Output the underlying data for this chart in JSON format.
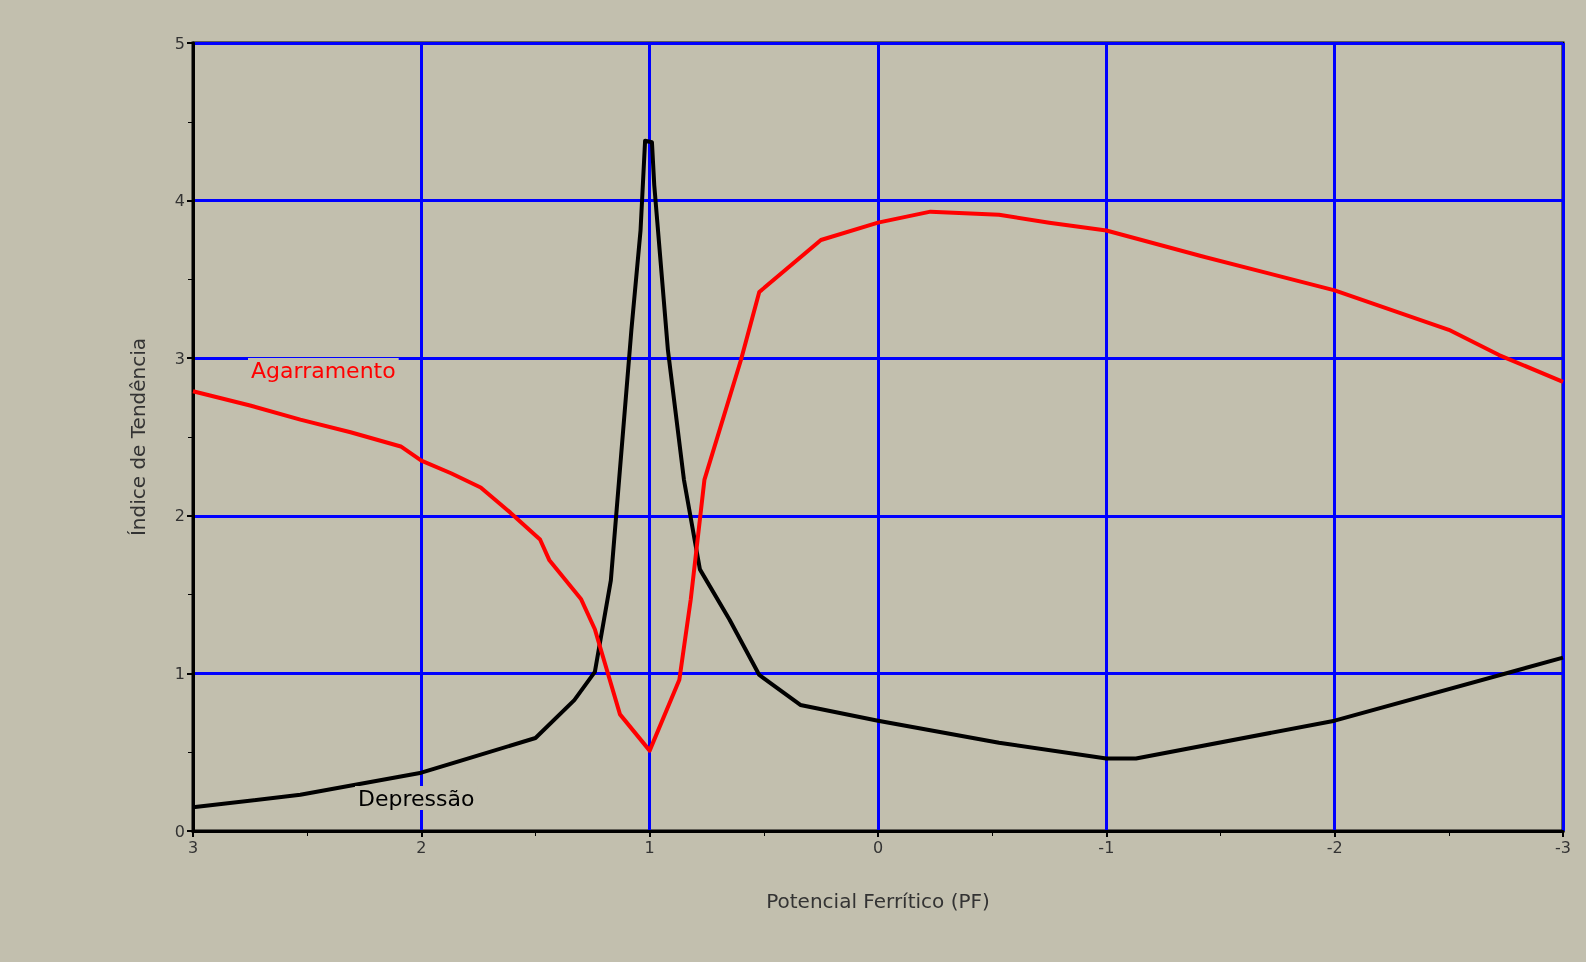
{
  "chart_data": {
    "type": "line",
    "xlabel": "Potencial Ferrítico (PF)",
    "ylabel": "Índice de Tendência",
    "xlim": [
      3,
      -3
    ],
    "xticks": [
      3,
      2,
      1,
      0,
      -1,
      -2,
      -3
    ],
    "ylim": [
      0,
      5
    ],
    "yticks": [
      0,
      1,
      2,
      3,
      4,
      5
    ],
    "grid": true,
    "marker": "none",
    "line_style": "solid",
    "series": [
      {
        "name": "Agarramento",
        "color": "#ff0000",
        "x": [
          3,
          2.75,
          2.53,
          2.31,
          2.09,
          2,
          1.87,
          1.74,
          1.61,
          1.48,
          1.44,
          1.3,
          1.24,
          1.13,
          1,
          0.87,
          0.82,
          0.76,
          0.6,
          0.52,
          0.25,
          0,
          -0.23,
          -0.53,
          -0.75,
          -1,
          -1.41,
          -2,
          -2.5,
          -2.72,
          -3
        ],
        "values": [
          2.79,
          2.7,
          2.61,
          2.53,
          2.44,
          2.35,
          2.27,
          2.18,
          2.02,
          1.85,
          1.72,
          1.47,
          1.28,
          0.74,
          0.51,
          0.96,
          1.47,
          2.23,
          2.99,
          3.42,
          3.75,
          3.86,
          3.93,
          3.91,
          3.86,
          3.81,
          3.65,
          3.43,
          3.18,
          3.02,
          2.85
        ]
      },
      {
        "name": "Depressão",
        "color": "#000000",
        "x": [
          3,
          2.53,
          2,
          1.5,
          1.33,
          1.24,
          1.17,
          1.08,
          1.04,
          1.02,
          0.99,
          0.98,
          0.92,
          0.85,
          0.78,
          0.65,
          0.52,
          0.34,
          0,
          -0.53,
          -1,
          -1.13,
          -2,
          -3
        ],
        "values": [
          0.15,
          0.23,
          0.37,
          0.59,
          0.83,
          1.01,
          1.59,
          3.18,
          3.81,
          4.38,
          4.37,
          4.1,
          3.05,
          2.23,
          1.66,
          1.34,
          0.99,
          0.8,
          0.7,
          0.56,
          0.46,
          0.46,
          0.7,
          1.1
        ]
      }
    ]
  }
}
